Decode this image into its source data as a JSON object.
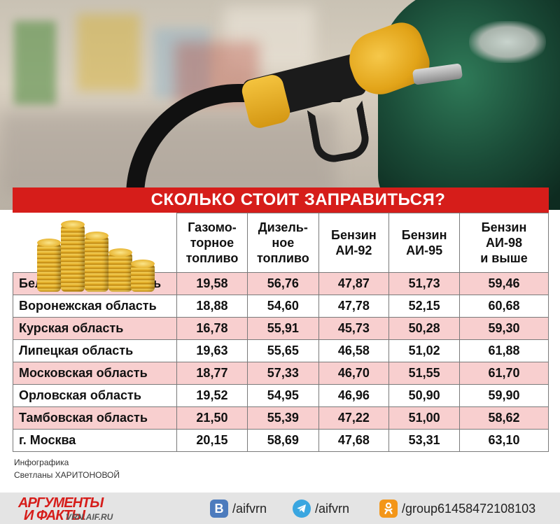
{
  "title": "СКОЛЬКО СТОИТ ЗАПРАВИТЬСЯ?",
  "columns": [
    "Газомо-\nторное\nтопливо",
    "Дизель-\nное\nтопливо",
    "Бензин\nАИ-92",
    "Бензин\nАИ-95",
    "Бензин\nАИ-98\nи выше"
  ],
  "rows": [
    {
      "region": "Белгородская область",
      "values": [
        "19,58",
        "56,76",
        "47,87",
        "51,73",
        "59,46"
      ]
    },
    {
      "region": "Воронежская область",
      "values": [
        "18,88",
        "54,60",
        "47,78",
        "52,15",
        "60,68"
      ]
    },
    {
      "region": "Курская область",
      "values": [
        "16,78",
        "55,91",
        "45,73",
        "50,28",
        "59,30"
      ]
    },
    {
      "region": "Липецкая область",
      "values": [
        "19,63",
        "55,65",
        "46,58",
        "51,02",
        "61,88"
      ]
    },
    {
      "region": "Московская область",
      "values": [
        "18,77",
        "57,33",
        "46,70",
        "51,55",
        "61,70"
      ]
    },
    {
      "region": "Орловская область",
      "values": [
        "19,52",
        "54,95",
        "46,96",
        "50,90",
        "59,90"
      ]
    },
    {
      "region": "Тамбовская область",
      "values": [
        "21,50",
        "55,39",
        "47,22",
        "51,00",
        "58,62"
      ]
    },
    {
      "region": "г. Москва",
      "values": [
        "20,15",
        "58,69",
        "47,68",
        "53,31",
        "63,10"
      ]
    }
  ],
  "credit": {
    "line1": "Инфографика",
    "line2": "Светланы ХАРИТОНОВОЙ"
  },
  "footer": {
    "logo_top": "АРГУМЕНТЫ",
    "logo_bottom": "И ФАКТЫ",
    "logo_site": "VRN.AIF.RU",
    "vk_label": "/aifvrn",
    "tg_label": "/aifvrn",
    "ok_label": "/group61458472108103"
  },
  "colors": {
    "accent": "#d61d1a",
    "row_highlight": "#f8cfcf"
  },
  "icons": [
    "vk-icon",
    "telegram-icon",
    "odnoklassniki-icon",
    "coins-icon"
  ]
}
